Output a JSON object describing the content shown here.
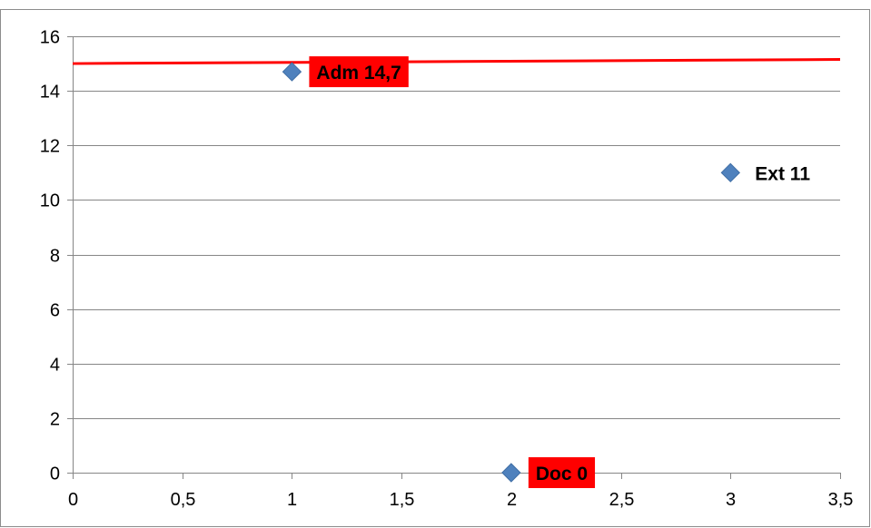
{
  "chart_data": {
    "type": "scatter",
    "title": "",
    "xlabel": "",
    "ylabel": "",
    "xlim": [
      0,
      3.5
    ],
    "ylim": [
      0,
      16
    ],
    "x_ticks": [
      "0",
      "0,5",
      "1",
      "1,5",
      "2",
      "2,5",
      "3",
      "3,5"
    ],
    "x_tick_values": [
      0,
      0.5,
      1,
      1.5,
      2,
      2.5,
      3,
      3.5
    ],
    "y_ticks": [
      "0",
      "2",
      "4",
      "6",
      "8",
      "10",
      "12",
      "14",
      "16"
    ],
    "y_tick_values": [
      0,
      2,
      4,
      6,
      8,
      10,
      12,
      14,
      16
    ],
    "grid": "horizontal",
    "legend": "none",
    "series": [
      {
        "marker": "diamond",
        "color": "#4F81BD",
        "points": [
          {
            "x": 1,
            "y": 14.7,
            "label": "Adm 14,7",
            "label_background": "#FF0000"
          },
          {
            "x": 2,
            "y": 0,
            "label": "Doc 0",
            "label_background": "#FF0000"
          },
          {
            "x": 3,
            "y": 11,
            "label": "Ext 11",
            "label_background": ""
          }
        ]
      }
    ],
    "reference_line": {
      "color": "#FF0000",
      "x": [
        0,
        3.5
      ],
      "y": [
        15,
        15.15
      ]
    }
  }
}
